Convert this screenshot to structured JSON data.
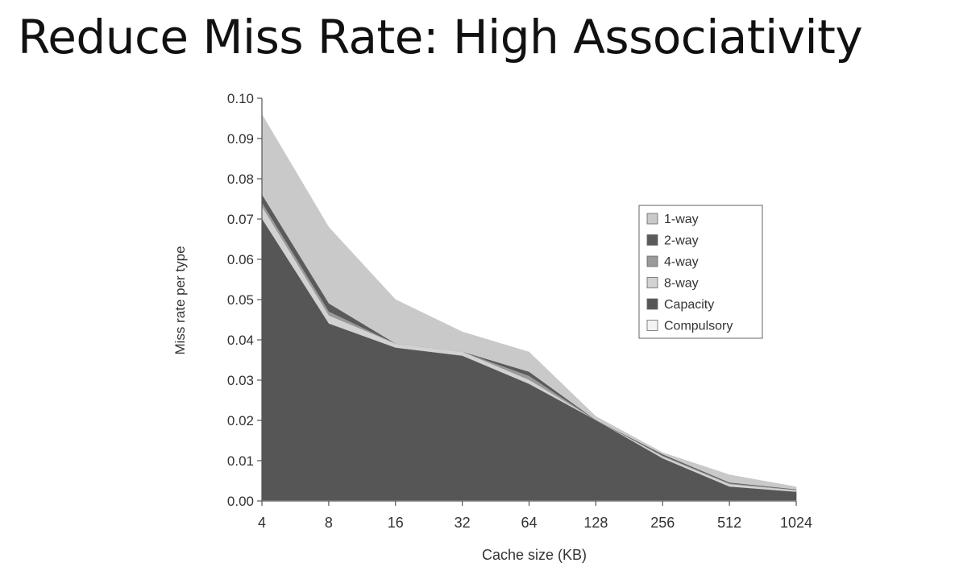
{
  "slide": {
    "title": "Reduce Miss Rate: High Associativity"
  },
  "chart_data": {
    "type": "area",
    "x": [
      "4",
      "8",
      "16",
      "32",
      "64",
      "128",
      "256",
      "512",
      "1024"
    ],
    "xlabel": "Cache size (KB)",
    "ylabel": "Miss rate per type",
    "ylim": [
      0,
      0.1
    ],
    "yticks": [
      "0.00",
      "0.01",
      "0.02",
      "0.03",
      "0.04",
      "0.05",
      "0.06",
      "0.07",
      "0.08",
      "0.09",
      "0.10"
    ],
    "grid": false,
    "legend_position": "right",
    "series": [
      {
        "name": "1-way",
        "color": "#c9c9c9",
        "values": [
          0.096,
          0.068,
          0.05,
          0.042,
          0.037,
          0.021,
          0.012,
          0.0065,
          0.0035
        ]
      },
      {
        "name": "2-way",
        "color": "#5a5a5a",
        "values": [
          0.076,
          0.049,
          0.039,
          0.037,
          0.032,
          0.02,
          0.0115,
          0.0045,
          0.0028
        ]
      },
      {
        "name": "4-way",
        "color": "#9a9a9a",
        "values": [
          0.074,
          0.047,
          0.039,
          0.037,
          0.031,
          0.02,
          0.0112,
          0.0043,
          0.0027
        ]
      },
      {
        "name": "8-way",
        "color": "#d2d2d2",
        "values": [
          0.073,
          0.046,
          0.039,
          0.037,
          0.03,
          0.02,
          0.011,
          0.0041,
          0.0026
        ]
      },
      {
        "name": "Capacity",
        "color": "#565656",
        "values": [
          0.07,
          0.044,
          0.038,
          0.036,
          0.029,
          0.02,
          0.0105,
          0.0035,
          0.0022
        ]
      },
      {
        "name": "Compulsory",
        "color": "#f3f3f3",
        "values": [
          0.0001,
          0.0001,
          0.0001,
          0.0001,
          0.0001,
          0.0001,
          0.0001,
          0.0001,
          0.0001
        ]
      }
    ]
  }
}
